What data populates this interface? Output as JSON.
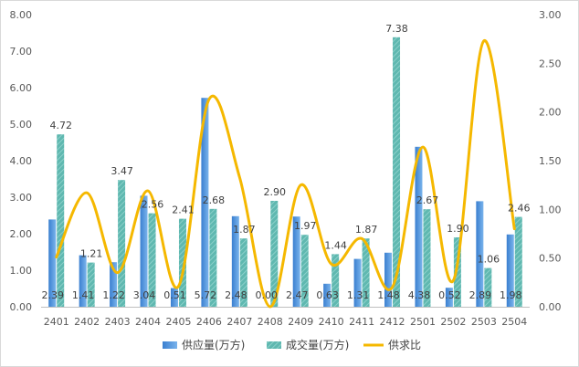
{
  "chart_data": {
    "type": "bar",
    "title": "",
    "categories": [
      "2401",
      "2402",
      "2403",
      "2404",
      "2405",
      "2406",
      "2407",
      "2408",
      "2409",
      "2410",
      "2411",
      "2412",
      "2501",
      "2502",
      "2503",
      "2504"
    ],
    "series": [
      {
        "name": "供应量(万方)",
        "kind": "bar",
        "axis": "left",
        "color": "#4a90d9",
        "values": [
          2.39,
          1.41,
          1.22,
          3.04,
          0.51,
          5.72,
          2.48,
          0.0,
          2.47,
          0.63,
          1.31,
          1.48,
          4.38,
          0.52,
          2.89,
          1.98
        ],
        "labels": [
          "2.39",
          "1.41",
          "1.22",
          "3.04",
          "0.51",
          "5.72",
          "2.48",
          "0.00",
          "2.47",
          "0.63",
          "1.31",
          "1.48",
          "4.38",
          "0.52",
          "2.89",
          "1.98"
        ]
      },
      {
        "name": "成交量(万方)",
        "kind": "bar",
        "axis": "left",
        "color": "#5fb8b0",
        "values": [
          4.72,
          1.21,
          3.47,
          2.56,
          2.41,
          2.68,
          1.87,
          2.9,
          1.97,
          1.44,
          1.87,
          7.38,
          2.67,
          1.9,
          1.06,
          2.46
        ],
        "labels": [
          "4.72",
          "1.21",
          "3.47",
          "2.56",
          "2.41",
          "2.68",
          "1.87",
          "2.90",
          "1.97",
          "1.44",
          "1.87",
          "7.38",
          "2.67",
          "1.90",
          "1.06",
          "2.46"
        ]
      },
      {
        "name": "供求比",
        "kind": "line",
        "axis": "right",
        "color": "#f5b800",
        "values": [
          0.51,
          1.17,
          0.35,
          1.19,
          0.21,
          2.13,
          1.33,
          0.0,
          1.25,
          0.44,
          0.7,
          0.2,
          1.64,
          0.27,
          2.73,
          0.8
        ]
      }
    ],
    "y_left": {
      "min": 0,
      "max": 8,
      "ticks": [
        "0.00",
        "1.00",
        "2.00",
        "3.00",
        "4.00",
        "5.00",
        "6.00",
        "7.00",
        "8.00"
      ]
    },
    "y_right": {
      "min": 0,
      "max": 3,
      "ticks": [
        "0.00",
        "0.50",
        "1.00",
        "1.50",
        "2.00",
        "2.50",
        "3.00"
      ]
    },
    "legend_position": "bottom",
    "grid": false
  }
}
